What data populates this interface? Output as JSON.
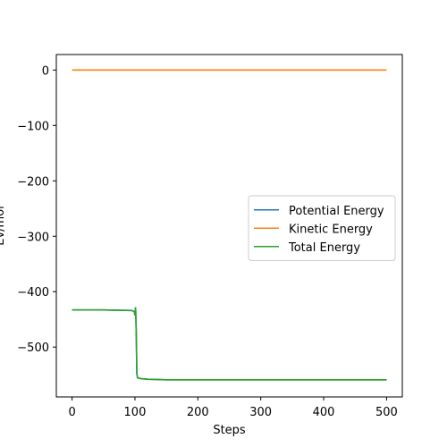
{
  "chart_data": {
    "type": "line",
    "xlabel": "Steps",
    "ylabel": "Ev/mol",
    "xlim": [
      -25,
      525
    ],
    "ylim": [
      -590,
      28
    ],
    "xticks": [
      0,
      100,
      200,
      300,
      400,
      500
    ],
    "yticks": [
      0,
      -100,
      -200,
      -300,
      -400,
      -500
    ],
    "ytick_labels": [
      "0",
      "−100",
      "−200",
      "−300",
      "−400",
      "−500"
    ],
    "legend_position": "center-right",
    "series": [
      {
        "name": "Potential Energy",
        "color": "#1f77b4",
        "x": [
          0,
          50,
          95,
          99,
          100,
          101,
          102,
          103,
          104,
          105,
          110,
          120,
          150,
          200,
          300,
          400,
          500
        ],
        "y": [
          -433,
          -433,
          -434,
          -436,
          -443,
          -428,
          -470,
          -548,
          -555,
          -556,
          -557,
          -558,
          -559,
          -559,
          -559,
          -559,
          -559
        ]
      },
      {
        "name": "Kinetic Energy",
        "color": "#ff7f0e",
        "x": [
          0,
          100,
          200,
          300,
          400,
          500
        ],
        "y": [
          0,
          0,
          0,
          0,
          0,
          0
        ]
      },
      {
        "name": "Total Energy",
        "color": "#2ca02c",
        "x": [
          0,
          50,
          95,
          99,
          100,
          101,
          102,
          103,
          104,
          105,
          110,
          120,
          150,
          200,
          300,
          400,
          500
        ],
        "y": [
          -433,
          -433,
          -434,
          -436,
          -443,
          -428,
          -470,
          -548,
          -555,
          -556,
          -557,
          -558,
          -559,
          -559,
          -559,
          -559,
          -559
        ]
      }
    ]
  }
}
